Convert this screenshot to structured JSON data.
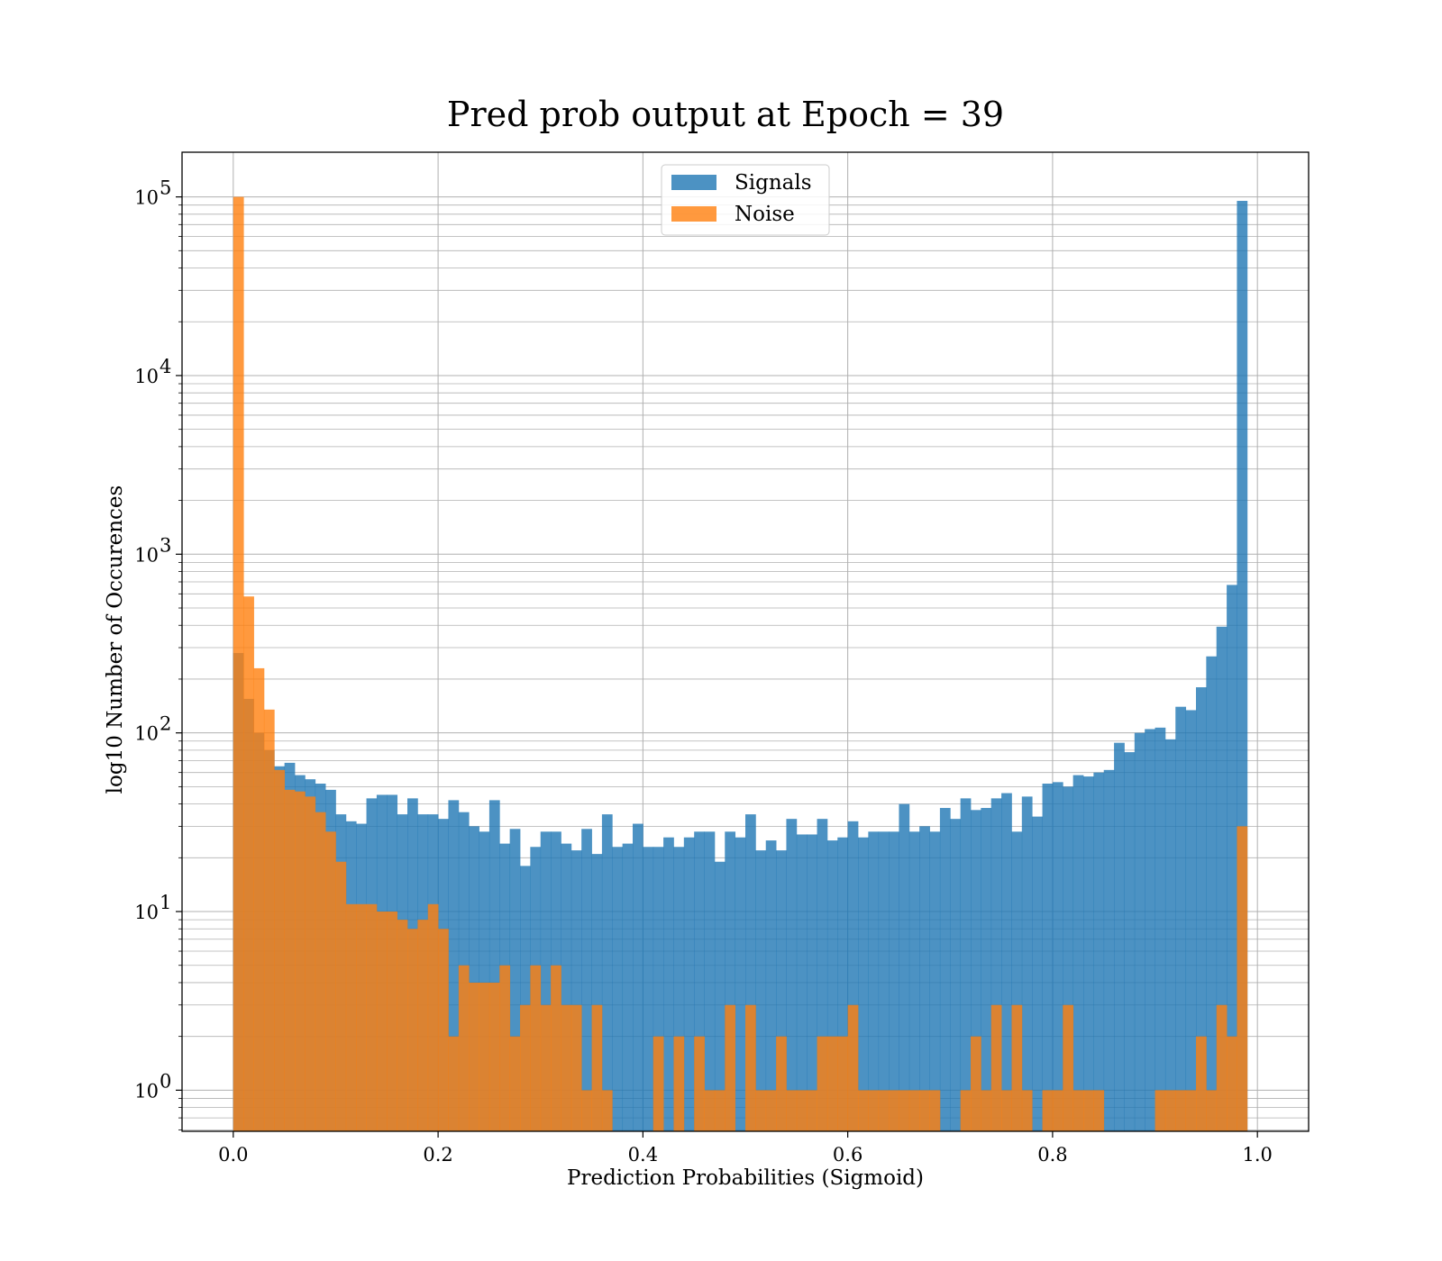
{
  "chart_data": {
    "type": "bar",
    "title": "Pred prob output at Epoch = 39",
    "xlabel": "Prediction Probabilities (Sigmoid)",
    "ylabel": "log10 Number of Occurences",
    "xlim": [
      -0.05,
      1.05
    ],
    "ylim_log10": [
      -0.23,
      5.25
    ],
    "yscale": "log",
    "grid": true,
    "legend_position": "upper center",
    "x_ticks": [
      "0.0",
      "0.2",
      "0.4",
      "0.6",
      "0.8",
      "1.0"
    ],
    "x_tick_values": [
      0.0,
      0.2,
      0.4,
      0.6,
      0.8,
      1.0
    ],
    "y_ticks": [
      {
        "base": "10",
        "exp": "0",
        "value": 1
      },
      {
        "base": "10",
        "exp": "1",
        "value": 10
      },
      {
        "base": "10",
        "exp": "2",
        "value": 100
      },
      {
        "base": "10",
        "exp": "3",
        "value": 1000
      },
      {
        "base": "10",
        "exp": "4",
        "value": 10000
      },
      {
        "base": "10",
        "exp": "5",
        "value": 100000
      }
    ],
    "bin_width": 0.01,
    "bin_start": 0.0,
    "series": [
      {
        "name": "Signals",
        "color": "#1f77b4",
        "values": [
          280,
          155,
          100,
          80,
          65,
          68,
          58,
          55,
          52,
          48,
          35,
          32,
          31,
          43,
          45,
          45,
          35,
          43,
          35,
          35,
          33,
          42,
          36,
          30,
          28,
          42,
          24,
          29,
          18,
          23,
          28,
          28,
          24,
          22,
          29,
          21,
          35,
          23,
          24,
          31,
          23,
          23,
          26,
          23,
          26,
          28,
          28,
          19,
          28,
          26,
          35,
          22,
          25,
          22,
          33,
          27,
          27,
          33,
          25,
          26,
          32,
          26,
          28,
          28,
          28,
          40,
          28,
          30,
          28,
          38,
          33,
          43,
          37,
          38,
          43,
          46,
          28,
          44,
          34,
          52,
          53,
          50,
          58,
          57,
          60,
          62,
          88,
          78,
          100,
          105,
          107,
          92,
          140,
          134,
          180,
          268,
          393,
          673,
          95000
        ]
      },
      {
        "name": "Noise",
        "color": "#ff7f0e",
        "values": [
          100000,
          580,
          230,
          135,
          62,
          48,
          47,
          44,
          36,
          28,
          19,
          11,
          11,
          11,
          10,
          10,
          9,
          8,
          9,
          11,
          8,
          2,
          5,
          4,
          4,
          4,
          5,
          2,
          3,
          5,
          3,
          5,
          3,
          3,
          1,
          3,
          1,
          0,
          0,
          0,
          0,
          2,
          0,
          2,
          0,
          2,
          1,
          1,
          3,
          0,
          3,
          1,
          1,
          2,
          1,
          1,
          1,
          2,
          2,
          2,
          3,
          1,
          1,
          1,
          1,
          1,
          1,
          1,
          1,
          0,
          0,
          1,
          2,
          1,
          3,
          1,
          3,
          1,
          0,
          1,
          1,
          3,
          1,
          1,
          1,
          0,
          0,
          0,
          0,
          0,
          1,
          1,
          1,
          1,
          2,
          1,
          3,
          2,
          30
        ]
      }
    ]
  }
}
